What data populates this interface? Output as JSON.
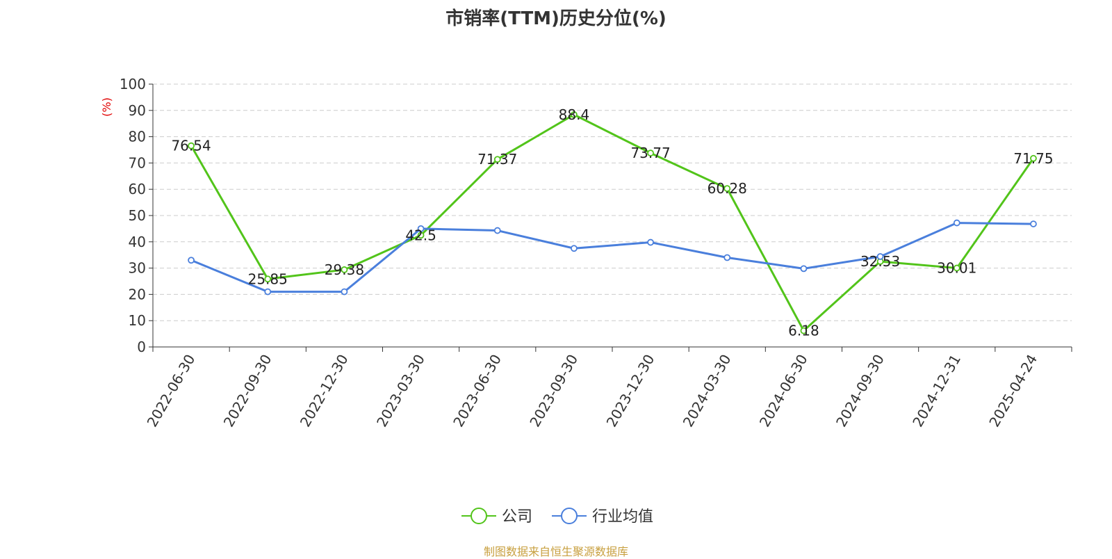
{
  "title": "市销率(TTM)历史分位(%)",
  "source": "制图数据来自恒生聚源数据库",
  "colors": {
    "company": "#52c41a",
    "industry": "#4a7fdc",
    "unit_label": "#e00000",
    "source": "#c8a040",
    "axis": "#333333",
    "grid": "#cccccc"
  },
  "chart_data": {
    "type": "line",
    "title": "市销率(TTM)历史分位(%)",
    "ylabel": "(%)",
    "xlabel": "",
    "ylim": [
      0,
      100
    ],
    "yticks": [
      0,
      10,
      20,
      30,
      40,
      50,
      60,
      70,
      80,
      90,
      100
    ],
    "grid": true,
    "legend_position": "bottom-center",
    "categories": [
      "2022-06-30",
      "2022-09-30",
      "2022-12-30",
      "2023-03-30",
      "2023-06-30",
      "2023-09-30",
      "2023-12-30",
      "2024-03-30",
      "2024-06-30",
      "2024-09-30",
      "2024-12-31",
      "2025-04-24"
    ],
    "series": [
      {
        "name": "公司",
        "values": [
          76.54,
          25.85,
          29.38,
          42.5,
          71.37,
          88.4,
          73.77,
          60.28,
          6.18,
          32.53,
          30.01,
          71.75
        ],
        "labels": [
          "76.54",
          "25.85",
          "29.38",
          "42.5",
          "71.37",
          "88.4",
          "73.77",
          "60.28",
          "6.18",
          "32.53",
          "30.01",
          "71.75"
        ]
      },
      {
        "name": "行业均值",
        "values": [
          33,
          21,
          21,
          45,
          44.3,
          37.5,
          39.8,
          34,
          29.8,
          34.4,
          47.2,
          46.8
        ]
      }
    ]
  }
}
